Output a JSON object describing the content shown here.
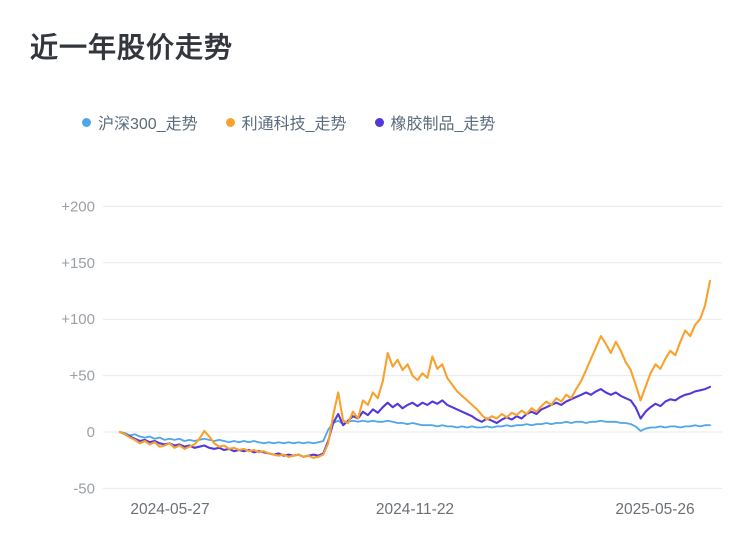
{
  "title": "近一年股价走势",
  "chart_data": {
    "type": "line",
    "title": "近一年股价走势",
    "xlabel": "",
    "ylabel": "",
    "grid": true,
    "legend_position": "top",
    "x_tick_labels": [
      "2024-05-27",
      "2024-11-22",
      "2025-05-26"
    ],
    "y_ticks": [
      200,
      150,
      100,
      50,
      0,
      -50
    ],
    "y_tick_labels": [
      "+200",
      "+150",
      "+100",
      "+50",
      "0",
      "-50"
    ],
    "ylim": [
      -50,
      225
    ],
    "series": [
      {
        "name": "沪深300_走势",
        "color": "#4fa6e8",
        "values": [
          0,
          -1,
          -3,
          -2,
          -4,
          -5,
          -4,
          -6,
          -5,
          -7,
          -6,
          -7,
          -6,
          -8,
          -7,
          -8,
          -7,
          -6,
          -7,
          -8,
          -7,
          -8,
          -9,
          -8,
          -9,
          -8,
          -9,
          -8,
          -9,
          -10,
          -9,
          -10,
          -9,
          -10,
          -9,
          -10,
          -9,
          -10,
          -9,
          -10,
          -9,
          -8,
          2,
          8,
          10,
          7,
          9,
          10,
          9,
          10,
          9,
          10,
          9,
          9,
          10,
          9,
          8,
          8,
          7,
          8,
          7,
          6,
          6,
          6,
          5,
          6,
          5,
          5,
          4,
          5,
          4,
          5,
          4,
          4,
          5,
          4,
          5,
          5,
          6,
          5,
          6,
          6,
          7,
          6,
          7,
          7,
          8,
          7,
          8,
          8,
          9,
          8,
          9,
          9,
          8,
          9,
          9,
          10,
          9,
          9,
          9,
          8,
          8,
          7,
          5,
          1,
          3,
          4,
          4,
          5,
          4,
          5,
          5,
          4,
          5,
          5,
          6,
          5,
          6,
          6
        ]
      },
      {
        "name": "利通科技_走势",
        "color": "#f7a22e",
        "values": [
          0,
          -2,
          -5,
          -7,
          -10,
          -8,
          -11,
          -9,
          -13,
          -12,
          -10,
          -14,
          -12,
          -15,
          -13,
          -11,
          -6,
          1,
          -4,
          -10,
          -13,
          -12,
          -15,
          -14,
          -16,
          -15,
          -17,
          -16,
          -18,
          -17,
          -19,
          -20,
          -21,
          -20,
          -22,
          -21,
          -20,
          -22,
          -21,
          -23,
          -22,
          -20,
          -10,
          15,
          35,
          10,
          8,
          18,
          12,
          28,
          24,
          35,
          30,
          45,
          70,
          58,
          64,
          55,
          60,
          50,
          46,
          52,
          48,
          67,
          56,
          60,
          48,
          42,
          36,
          32,
          28,
          24,
          20,
          15,
          11,
          14,
          12,
          16,
          13,
          17,
          15,
          19,
          16,
          21,
          18,
          23,
          27,
          24,
          30,
          27,
          33,
          30,
          38,
          45,
          55,
          65,
          75,
          85,
          78,
          70,
          80,
          72,
          62,
          55,
          42,
          28,
          40,
          52,
          60,
          56,
          65,
          72,
          68,
          80,
          90,
          85,
          95,
          100,
          112,
          134
        ]
      },
      {
        "name": "橡胶制品_走势",
        "color": "#5438dc",
        "values": [
          0,
          -2,
          -4,
          -6,
          -8,
          -7,
          -9,
          -8,
          -10,
          -11,
          -10,
          -12,
          -11,
          -13,
          -12,
          -14,
          -13,
          -12,
          -14,
          -15,
          -14,
          -16,
          -15,
          -17,
          -16,
          -17,
          -16,
          -18,
          -17,
          -18,
          -19,
          -20,
          -19,
          -21,
          -20,
          -21,
          -20,
          -22,
          -21,
          -20,
          -21,
          -19,
          -8,
          8,
          16,
          6,
          10,
          14,
          12,
          18,
          15,
          20,
          17,
          22,
          26,
          22,
          25,
          21,
          24,
          26,
          23,
          26,
          24,
          27,
          25,
          28,
          24,
          22,
          20,
          18,
          16,
          14,
          11,
          9,
          12,
          10,
          8,
          11,
          13,
          11,
          14,
          12,
          16,
          18,
          16,
          20,
          22,
          24,
          26,
          24,
          27,
          29,
          31,
          33,
          35,
          33,
          36,
          38,
          35,
          33,
          35,
          32,
          30,
          28,
          22,
          12,
          18,
          22,
          25,
          23,
          27,
          29,
          28,
          31,
          33,
          34,
          36,
          37,
          38,
          40
        ]
      }
    ]
  }
}
